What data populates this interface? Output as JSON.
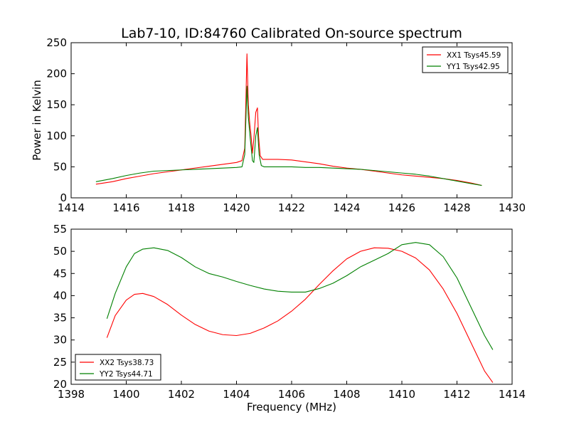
{
  "figure": {
    "title": "Lab7-10, ID:84760 Calibrated On-source spectrum",
    "ylabel": "Power in Kelvin",
    "xlabel": "Frequency (MHz)"
  },
  "chart_data": [
    {
      "type": "line",
      "title": "Lab7-10, ID:84760 Calibrated On-source spectrum",
      "xlabel": "",
      "ylabel": "Power in Kelvin",
      "xlim": [
        1414,
        1430
      ],
      "ylim": [
        0,
        250
      ],
      "xticks": [
        1414,
        1416,
        1418,
        1420,
        1422,
        1424,
        1426,
        1428,
        1430
      ],
      "yticks": [
        0,
        50,
        100,
        150,
        200,
        250
      ],
      "grid": false,
      "legend_position": "top-right",
      "series": [
        {
          "name": "XX1 Tsys45.59",
          "color": "#ff0000",
          "x": [
            1414.9,
            1415.5,
            1416.0,
            1416.5,
            1417.0,
            1417.5,
            1418.0,
            1418.5,
            1419.0,
            1419.5,
            1420.0,
            1420.2,
            1420.3,
            1420.38,
            1420.43,
            1420.48,
            1420.53,
            1420.58,
            1420.63,
            1420.7,
            1420.76,
            1420.8,
            1420.86,
            1420.95,
            1421.1,
            1421.5,
            1422.0,
            1422.5,
            1423.0,
            1423.5,
            1424.0,
            1424.5,
            1425.0,
            1425.5,
            1426.0,
            1426.5,
            1427.0,
            1427.5,
            1428.0,
            1428.5,
            1428.9
          ],
          "values": [
            22,
            26,
            31,
            35,
            39,
            42,
            45,
            48,
            51,
            54,
            57,
            60,
            80,
            232,
            150,
            120,
            100,
            72,
            95,
            138,
            145,
            100,
            68,
            62,
            62,
            62,
            61,
            58,
            55,
            51,
            48,
            46,
            43,
            40,
            37,
            35,
            33,
            31,
            28,
            24,
            20
          ]
        },
        {
          "name": "YY1 Tsys42.95",
          "color": "#008000",
          "x": [
            1414.9,
            1415.5,
            1416.0,
            1416.5,
            1417.0,
            1417.5,
            1418.0,
            1418.5,
            1419.0,
            1419.5,
            1420.0,
            1420.2,
            1420.3,
            1420.38,
            1420.43,
            1420.5,
            1420.58,
            1420.63,
            1420.7,
            1420.76,
            1420.82,
            1420.9,
            1421.0,
            1421.5,
            1422.0,
            1422.5,
            1423.0,
            1423.5,
            1424.0,
            1424.5,
            1425.0,
            1425.5,
            1426.0,
            1426.5,
            1427.0,
            1427.5,
            1428.0,
            1428.5,
            1428.9
          ],
          "values": [
            26,
            31,
            36,
            40,
            43,
            44,
            45,
            46,
            47,
            48,
            49,
            50,
            70,
            180,
            130,
            95,
            60,
            57,
            100,
            113,
            70,
            52,
            50,
            50,
            50,
            49,
            49,
            48,
            47,
            46,
            44,
            42,
            40,
            38,
            35,
            31,
            27,
            23,
            20
          ]
        }
      ]
    },
    {
      "type": "line",
      "title": "",
      "xlabel": "Frequency (MHz)",
      "ylabel": "",
      "xlim": [
        1398,
        1414
      ],
      "ylim": [
        20,
        55
      ],
      "xticks": [
        1398,
        1400,
        1402,
        1404,
        1406,
        1408,
        1410,
        1412,
        1414
      ],
      "yticks": [
        20,
        25,
        30,
        35,
        40,
        45,
        50,
        55
      ],
      "grid": false,
      "legend_position": "bottom-left",
      "series": [
        {
          "name": "XX2 Tsys38.73",
          "color": "#ff0000",
          "x": [
            1399.3,
            1399.6,
            1400.0,
            1400.3,
            1400.6,
            1401.0,
            1401.5,
            1402.0,
            1402.5,
            1403.0,
            1403.5,
            1404.0,
            1404.5,
            1405.0,
            1405.5,
            1406.0,
            1406.5,
            1407.0,
            1407.5,
            1408.0,
            1408.5,
            1409.0,
            1409.5,
            1410.0,
            1410.5,
            1411.0,
            1411.5,
            1412.0,
            1412.5,
            1413.0,
            1413.3
          ],
          "values": [
            30.5,
            35.5,
            39.0,
            40.3,
            40.5,
            39.8,
            38.0,
            35.6,
            33.5,
            32.0,
            31.2,
            31.0,
            31.5,
            32.7,
            34.3,
            36.5,
            39.2,
            42.5,
            45.6,
            48.3,
            50.0,
            50.8,
            50.7,
            50.0,
            48.5,
            45.8,
            41.5,
            36.0,
            29.5,
            23.0,
            20.4
          ]
        },
        {
          "name": "YY2 Tsys44.71",
          "color": "#008000",
          "x": [
            1399.3,
            1399.6,
            1400.0,
            1400.3,
            1400.6,
            1401.0,
            1401.5,
            1402.0,
            1402.5,
            1403.0,
            1403.5,
            1404.0,
            1404.5,
            1405.0,
            1405.5,
            1406.0,
            1406.5,
            1407.0,
            1407.5,
            1408.0,
            1408.5,
            1409.0,
            1409.5,
            1410.0,
            1410.5,
            1411.0,
            1411.5,
            1412.0,
            1412.5,
            1413.0,
            1413.3
          ],
          "values": [
            34.8,
            40.5,
            46.5,
            49.5,
            50.5,
            50.8,
            50.2,
            48.6,
            46.5,
            45.0,
            44.2,
            43.2,
            42.3,
            41.5,
            41.0,
            40.8,
            40.8,
            41.6,
            42.8,
            44.5,
            46.5,
            48.0,
            49.5,
            51.5,
            52.0,
            51.5,
            48.8,
            44.0,
            37.5,
            31.0,
            27.8
          ]
        }
      ]
    }
  ]
}
